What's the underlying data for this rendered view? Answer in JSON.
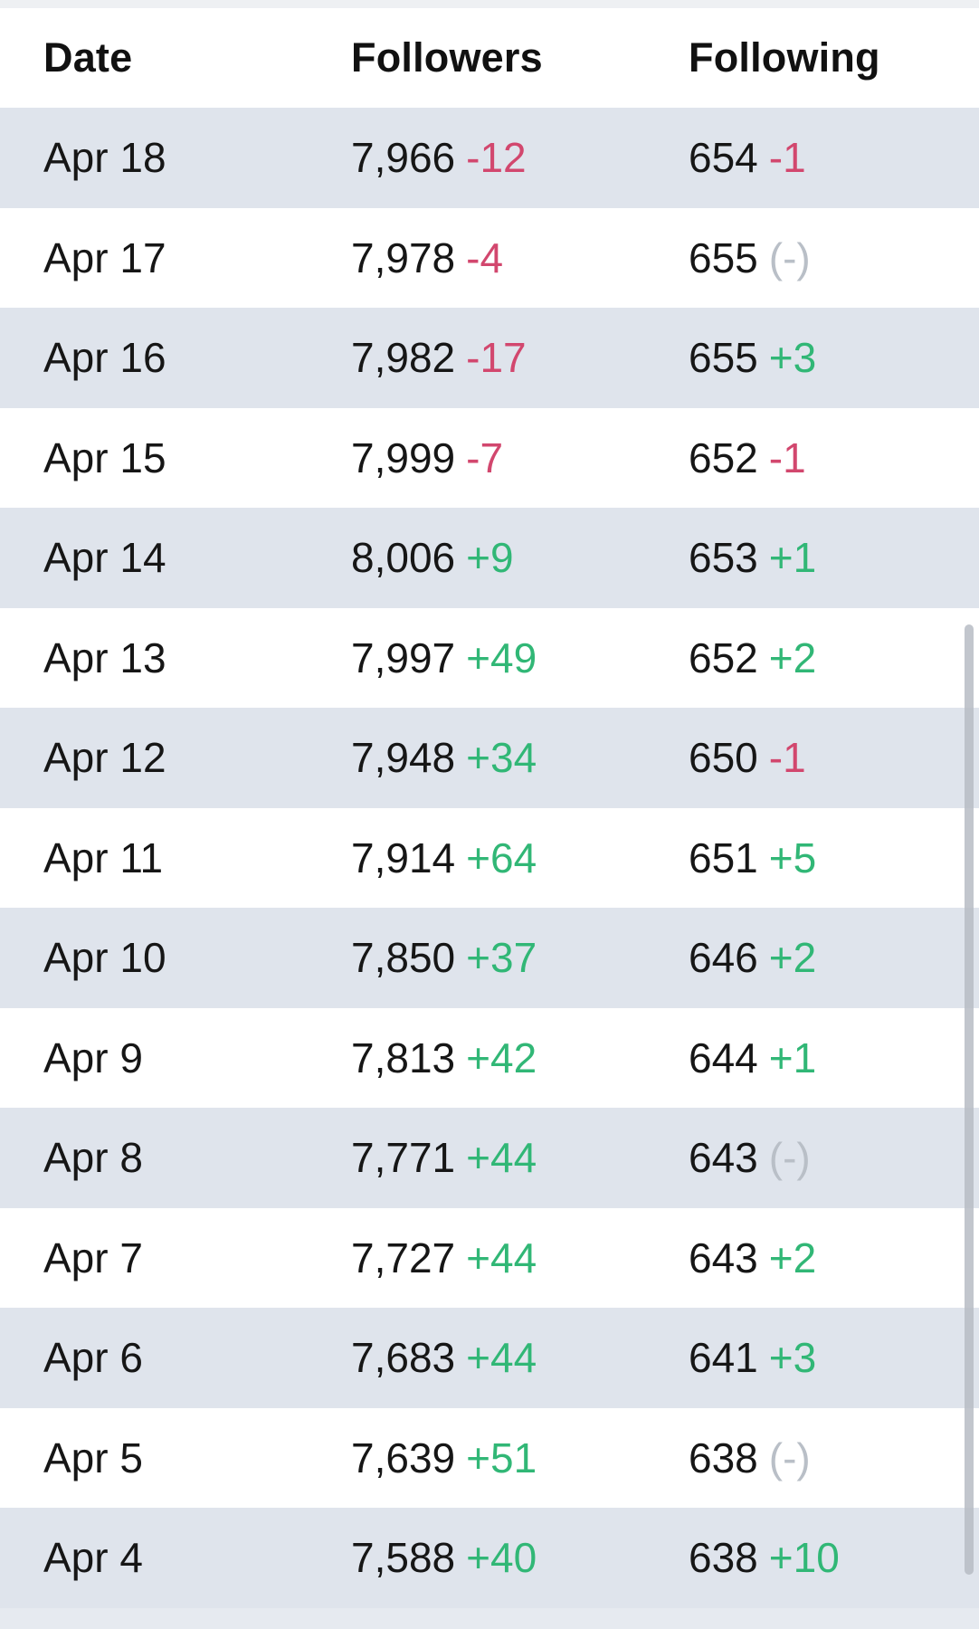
{
  "table": {
    "headers": {
      "date": "Date",
      "followers": "Followers",
      "following": "Following"
    },
    "rows": [
      {
        "date": "Apr 18",
        "followers": "7,966",
        "followers_delta": "-12",
        "following": "654",
        "following_delta": "-1"
      },
      {
        "date": "Apr 17",
        "followers": "7,978",
        "followers_delta": "-4",
        "following": "655",
        "following_delta": "(-)"
      },
      {
        "date": "Apr 16",
        "followers": "7,982",
        "followers_delta": "-17",
        "following": "655",
        "following_delta": "+3"
      },
      {
        "date": "Apr 15",
        "followers": "7,999",
        "followers_delta": "-7",
        "following": "652",
        "following_delta": "-1"
      },
      {
        "date": "Apr 14",
        "followers": "8,006",
        "followers_delta": "+9",
        "following": "653",
        "following_delta": "+1"
      },
      {
        "date": "Apr 13",
        "followers": "7,997",
        "followers_delta": "+49",
        "following": "652",
        "following_delta": "+2"
      },
      {
        "date": "Apr 12",
        "followers": "7,948",
        "followers_delta": "+34",
        "following": "650",
        "following_delta": "-1"
      },
      {
        "date": "Apr 11",
        "followers": "7,914",
        "followers_delta": "+64",
        "following": "651",
        "following_delta": "+5"
      },
      {
        "date": "Apr 10",
        "followers": "7,850",
        "followers_delta": "+37",
        "following": "646",
        "following_delta": "+2"
      },
      {
        "date": "Apr 9",
        "followers": "7,813",
        "followers_delta": "+42",
        "following": "644",
        "following_delta": "+1"
      },
      {
        "date": "Apr 8",
        "followers": "7,771",
        "followers_delta": "+44",
        "following": "643",
        "following_delta": "(-)"
      },
      {
        "date": "Apr 7",
        "followers": "7,727",
        "followers_delta": "+44",
        "following": "643",
        "following_delta": "+2"
      },
      {
        "date": "Apr 6",
        "followers": "7,683",
        "followers_delta": "+44",
        "following": "641",
        "following_delta": "+3"
      },
      {
        "date": "Apr 5",
        "followers": "7,639",
        "followers_delta": "+51",
        "following": "638",
        "following_delta": "(-)"
      },
      {
        "date": "Apr 4",
        "followers": "7,588",
        "followers_delta": "+40",
        "following": "638",
        "following_delta": "+10"
      }
    ]
  },
  "colors": {
    "negative": "#d2476e",
    "positive": "#31b776",
    "neutral": "#b9bfc7",
    "row_alt_background": "#dfe4ec"
  }
}
